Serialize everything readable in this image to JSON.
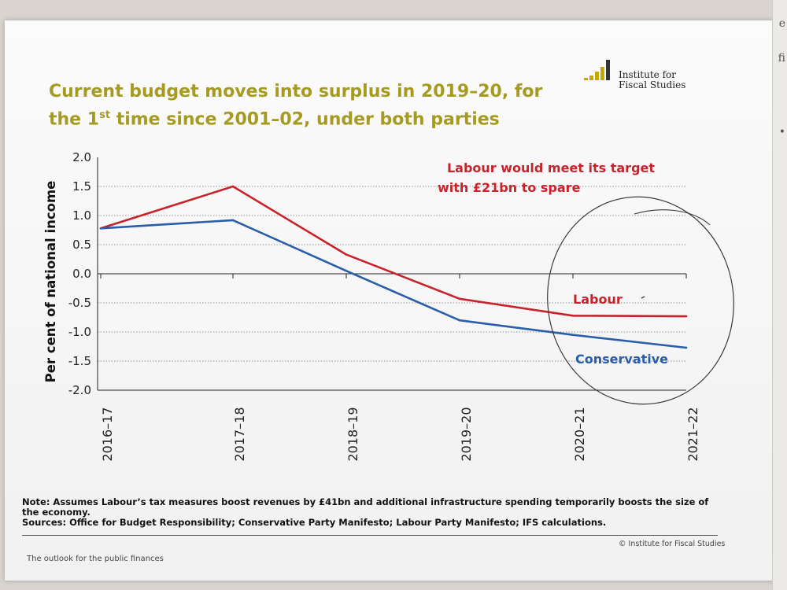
{
  "page": {
    "title_line1": "Current budget moves into surplus in 2019–20, for",
    "title_line2_pre": "the 1",
    "title_line2_sup": "st",
    "title_line2_post": " time since 2001–02, under both parties",
    "logo_line1": "Institute for",
    "logo_line2": "Fiscal Studies",
    "note": "Note: Assumes Labour’s tax measures boost revenues by £41bn and additional infrastructure spending temporarily boosts the size of the economy.",
    "sources": "Sources: Office for Budget Responsibility; Conservative Party Manifesto; Labour Party Manifesto; IFS calculations.",
    "footer_left": "The outlook for the public finances",
    "footer_right": "© Institute for Fiscal Studies",
    "edge_letters": [
      "e",
      "fi",
      "•"
    ]
  },
  "chart_data": {
    "type": "line",
    "title": "Current budget moves into surplus in 2019–20, for the 1st time since 2001–02, under both parties",
    "xlabel": "",
    "ylabel": "Per cent of national income",
    "categories": [
      "2016–17",
      "2017–18",
      "2018–19",
      "2019–20",
      "2020–21",
      "2021–22"
    ],
    "yticks": [
      "2.0",
      "1.5",
      "1.0",
      "0.5",
      "0.0",
      "-0.5",
      "-1.0",
      "-1.5",
      "-2.0"
    ],
    "ylim": [
      -2.0,
      2.0
    ],
    "grid": true,
    "series": [
      {
        "name": "Labour",
        "color": "#c8232c",
        "values": [
          0.78,
          1.5,
          0.33,
          -0.43,
          -0.72,
          -0.73
        ]
      },
      {
        "name": "Conservative",
        "color": "#2a5ea8",
        "values": [
          0.78,
          0.92,
          0.05,
          -0.8,
          -1.05,
          -1.27
        ]
      }
    ],
    "annotations": {
      "labour_target_line1": "Labour would meet its target",
      "labour_target_line2": "with £21bn to spare",
      "labour_label": "Labour",
      "conservative_label": "Conservative"
    },
    "colors": {
      "title": "#a69b22",
      "labour": "#c8232c",
      "conservative": "#2a5ea8",
      "axis": "#222222",
      "grid": "#333333"
    }
  }
}
